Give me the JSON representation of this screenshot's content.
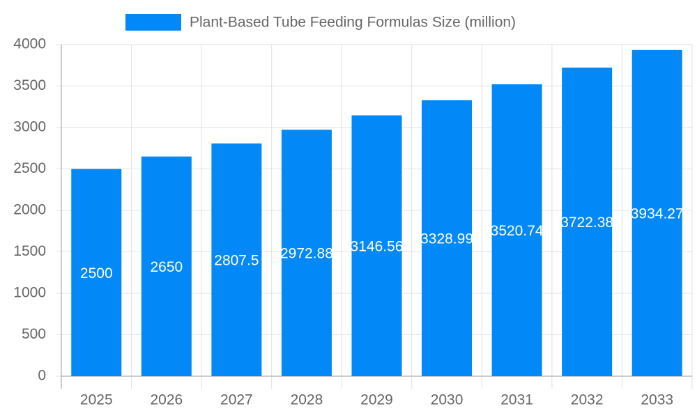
{
  "chart_data": {
    "type": "bar",
    "categories": [
      "2025",
      "2026",
      "2027",
      "2028",
      "2029",
      "2030",
      "2031",
      "2032",
      "2033"
    ],
    "series": [
      {
        "name": "Plant-Based Tube Feeding Formulas Size (million)",
        "color": "#0388f8",
        "values": [
          2500,
          2650,
          2807.5,
          2972.88,
          3146.56,
          3328.99,
          3520.74,
          3722.38,
          3934.27
        ]
      }
    ],
    "ylim": [
      0,
      4000
    ],
    "yticks": [
      0,
      500,
      1000,
      1500,
      2000,
      2500,
      3000,
      3500,
      4000
    ],
    "grid": true,
    "legend": "top"
  }
}
